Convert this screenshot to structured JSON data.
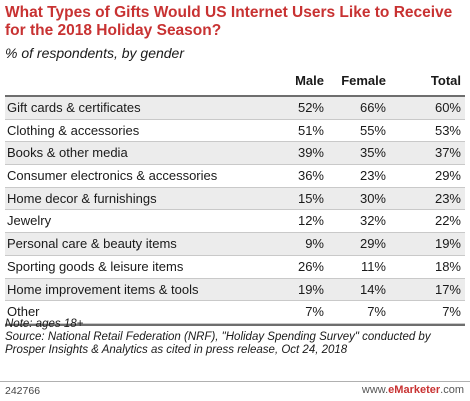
{
  "chart_data": {
    "type": "table",
    "title": "What Types of Gifts Would US Internet Users Like to Receive for the 2018 Holiday Season?",
    "subtitle": "% of respondents, by gender",
    "columns": [
      "Male",
      "Female",
      "Total"
    ],
    "rows": [
      {
        "label": "Gift cards & certificates",
        "male": "52%",
        "female": "66%",
        "total": "60%"
      },
      {
        "label": "Clothing & accessories",
        "male": "51%",
        "female": "55%",
        "total": "53%"
      },
      {
        "label": "Books & other media",
        "male": "39%",
        "female": "35%",
        "total": "37%"
      },
      {
        "label": "Consumer electronics & accessories",
        "male": "36%",
        "female": "23%",
        "total": "29%"
      },
      {
        "label": "Home decor & furnishings",
        "male": "15%",
        "female": "30%",
        "total": "23%"
      },
      {
        "label": "Jewelry",
        "male": "12%",
        "female": "32%",
        "total": "22%"
      },
      {
        "label": "Personal care & beauty items",
        "male": "9%",
        "female": "29%",
        "total": "19%"
      },
      {
        "label": "Sporting goods & leisure items",
        "male": "26%",
        "female": "11%",
        "total": "18%"
      },
      {
        "label": "Home improvement items & tools",
        "male": "19%",
        "female": "14%",
        "total": "17%"
      },
      {
        "label": "Other",
        "male": "7%",
        "female": "7%",
        "total": "7%"
      }
    ]
  },
  "notes": {
    "line1": "Note: ages 18+",
    "line2": "Source: National Retail Federation (NRF), \"Holiday Spending Survey\" conducted by Prosper Insights & Analytics as cited in press release, Oct 24, 2018"
  },
  "footer": {
    "chart_id": "242766",
    "brand_prefix": "www.",
    "brand_name": "eMarketer",
    "brand_suffix": ".com"
  },
  "colors": {
    "title": "#c83232",
    "row_alt": "#ececec",
    "rule": "#6e6e6e"
  }
}
